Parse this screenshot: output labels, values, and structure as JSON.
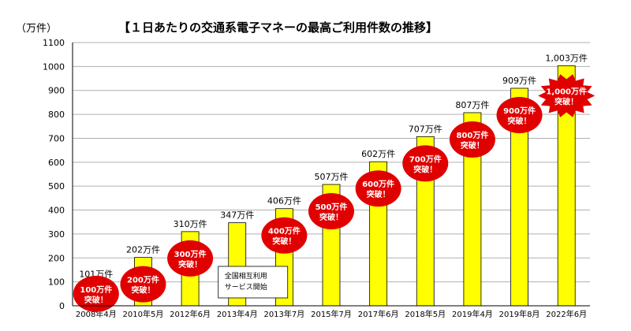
{
  "chart_data": {
    "type": "bar",
    "title": "【１日あたりの交通系電子マネーの最高ご利用件数の推移】",
    "ylabel": "（万件）",
    "ylim": [
      0,
      1100
    ],
    "yticks": [
      0,
      100,
      200,
      300,
      400,
      500,
      600,
      700,
      800,
      900,
      1000,
      1100
    ],
    "grid": true,
    "bar_color": "#ffff00",
    "burst_color": "#e00000",
    "categories": [
      "2008年4月",
      "2010年5月",
      "2012年6月",
      "2013年4月",
      "2013年7月",
      "2015年7月",
      "2017年6月",
      "2018年5月",
      "2019年4月",
      "2019年8月",
      "2022年6月"
    ],
    "values": [
      101,
      202,
      310,
      347,
      406,
      507,
      602,
      707,
      807,
      909,
      1003
    ],
    "value_labels": [
      "101万件",
      "202万件",
      "310万件",
      "347万件",
      "406万件",
      "507万件",
      "602万件",
      "707万件",
      "807万件",
      "909万件",
      "1,003万件"
    ],
    "milestones": [
      {
        "index": 0,
        "line1": "100万件",
        "line2": "突破！"
      },
      {
        "index": 1,
        "line1": "200万件",
        "line2": "突破！"
      },
      {
        "index": 2,
        "line1": "300万件",
        "line2": "突破！"
      },
      {
        "index": 4,
        "line1": "400万件",
        "line2": "突破！"
      },
      {
        "index": 5,
        "line1": "500万件",
        "line2": "突破！"
      },
      {
        "index": 6,
        "line1": "600万件",
        "line2": "突破！"
      },
      {
        "index": 7,
        "line1": "700万件",
        "line2": "突破！"
      },
      {
        "index": 8,
        "line1": "800万件",
        "line2": "突破！"
      },
      {
        "index": 9,
        "line1": "900万件",
        "line2": "突破！"
      },
      {
        "index": 10,
        "line1": "1,000万件",
        "line2": "突破！"
      }
    ],
    "annotation": {
      "index": 3,
      "line1": "全国相互利用",
      "line2": "サービス開始"
    }
  }
}
